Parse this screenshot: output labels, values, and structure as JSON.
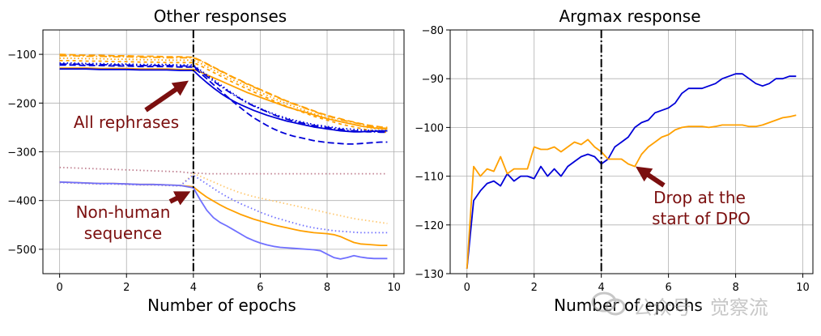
{
  "colors": {
    "orange": "#ffa000",
    "light_orange": "#ffc870",
    "blue": "#0000d8",
    "light_blue": "#7070ff",
    "mauve": "#c08090",
    "arrow": "#7b0f0f",
    "annotation_text": "#7b0f0f",
    "grid": "#b0b0b0",
    "vline": "#000000"
  },
  "watermark": {
    "text": "公众号 · 觉察流",
    "icon": "wechat-icon"
  },
  "chart_data": [
    {
      "type": "line",
      "title": "Other responses",
      "xlabel": "Number of epochs",
      "ylabel": "",
      "xlim": [
        -0.5,
        10.3
      ],
      "ylim": [
        -550,
        -50
      ],
      "xticks": [
        0,
        2,
        4,
        6,
        8,
        10
      ],
      "yticks": [
        -500,
        -400,
        -300,
        -200,
        -100
      ],
      "ytick_labels": [
        "−500",
        "−400",
        "−300",
        "−200",
        "−100"
      ],
      "grid": true,
      "legend": "none",
      "vline": {
        "x": 4,
        "style": "dashdot"
      },
      "annotations": [
        {
          "text": "All rephrases",
          "arrow_to": [
            4,
            -133
          ]
        },
        {
          "text": "Non-human sequence",
          "lines": [
            "Non-human",
            "sequence"
          ],
          "arrow_to": [
            4,
            -374
          ]
        }
      ],
      "x": [
        0,
        0.4,
        0.8,
        1.2,
        1.6,
        2.0,
        2.4,
        2.8,
        3.2,
        3.6,
        4.0,
        4.2,
        4.4,
        4.6,
        4.8,
        5.0,
        5.2,
        5.4,
        5.6,
        5.8,
        6.0,
        6.2,
        6.4,
        6.6,
        6.8,
        7.0,
        7.2,
        7.4,
        7.6,
        7.8,
        8.0,
        8.2,
        8.4,
        8.6,
        8.8,
        9.0,
        9.2,
        9.4,
        9.6,
        9.8
      ],
      "series": [
        {
          "color_key": "orange",
          "style": "dashed",
          "values": [
            -100,
            -101,
            -102,
            -102,
            -103,
            -103,
            -104,
            -104,
            -105,
            -105,
            -106,
            -112,
            -119,
            -126,
            -133,
            -140,
            -147,
            -153,
            -160,
            -166,
            -172,
            -178,
            -184,
            -190,
            -196,
            -201,
            -206,
            -211,
            -216,
            -221,
            -225,
            -229,
            -232,
            -236,
            -239,
            -242,
            -245,
            -247,
            -249,
            -250
          ]
        },
        {
          "color_key": "orange",
          "style": "dashdot",
          "values": [
            -103,
            -103,
            -104,
            -104,
            -105,
            -105,
            -106,
            -106,
            -107,
            -107,
            -107,
            -113,
            -120,
            -127,
            -134,
            -141,
            -148,
            -154,
            -161,
            -167,
            -173,
            -179,
            -185,
            -191,
            -197,
            -202,
            -207,
            -212,
            -217,
            -222,
            -226,
            -230,
            -234,
            -237,
            -240,
            -243,
            -246,
            -249,
            -251,
            -252
          ]
        },
        {
          "color_key": "orange",
          "style": "dotted",
          "values": [
            -108,
            -108,
            -109,
            -109,
            -110,
            -110,
            -111,
            -111,
            -112,
            -112,
            -112,
            -118,
            -125,
            -132,
            -139,
            -146,
            -153,
            -159,
            -166,
            -172,
            -178,
            -184,
            -190,
            -196,
            -202,
            -207,
            -212,
            -217,
            -222,
            -226,
            -230,
            -234,
            -238,
            -241,
            -244,
            -247,
            -250,
            -252,
            -254,
            -255
          ]
        },
        {
          "color_key": "orange",
          "style": "loosedash",
          "values": [
            -113,
            -113,
            -114,
            -114,
            -115,
            -115,
            -116,
            -116,
            -117,
            -117,
            -117,
            -123,
            -130,
            -137,
            -144,
            -151,
            -158,
            -164,
            -171,
            -177,
            -183,
            -189,
            -195,
            -201,
            -207,
            -212,
            -217,
            -222,
            -227,
            -231,
            -235,
            -239,
            -243,
            -246,
            -249,
            -252,
            -255,
            -257,
            -259,
            -260
          ]
        },
        {
          "color_key": "orange",
          "style": "solid",
          "values": [
            -128,
            -128,
            -128,
            -129,
            -129,
            -129,
            -130,
            -130,
            -130,
            -131,
            -131,
            -136,
            -142,
            -148,
            -154,
            -160,
            -166,
            -172,
            -178,
            -183,
            -188,
            -193,
            -198,
            -203,
            -208,
            -212,
            -216,
            -220,
            -224,
            -228,
            -232,
            -235,
            -238,
            -241,
            -244,
            -247,
            -249,
            -251,
            -252,
            -253
          ]
        },
        {
          "color_key": "blue",
          "style": "dashed",
          "values": [
            -122,
            -122,
            -123,
            -123,
            -124,
            -124,
            -125,
            -125,
            -125,
            -126,
            -126,
            -138,
            -150,
            -162,
            -174,
            -186,
            -198,
            -209,
            -220,
            -230,
            -238,
            -246,
            -253,
            -259,
            -264,
            -268,
            -271,
            -274,
            -277,
            -279,
            -281,
            -282,
            -283,
            -284,
            -284,
            -283,
            -282,
            -281,
            -280,
            -280
          ]
        },
        {
          "color_key": "blue",
          "style": "dotted",
          "values": [
            -118,
            -118,
            -119,
            -119,
            -120,
            -120,
            -121,
            -121,
            -121,
            -122,
            -122,
            -132,
            -142,
            -152,
            -162,
            -172,
            -181,
            -190,
            -198,
            -205,
            -211,
            -217,
            -222,
            -227,
            -231,
            -235,
            -238,
            -241,
            -244,
            -246,
            -248,
            -250,
            -252,
            -253,
            -254,
            -255,
            -256,
            -256,
            -257,
            -257
          ]
        },
        {
          "color_key": "blue",
          "style": "dashdot",
          "values": [
            -120,
            -120,
            -121,
            -121,
            -122,
            -122,
            -123,
            -123,
            -123,
            -124,
            -124,
            -134,
            -145,
            -155,
            -165,
            -174,
            -183,
            -191,
            -199,
            -206,
            -212,
            -218,
            -224,
            -229,
            -233,
            -237,
            -240,
            -243,
            -246,
            -248,
            -250,
            -252,
            -254,
            -256,
            -257,
            -258,
            -259,
            -259,
            -260,
            -260
          ]
        },
        {
          "color_key": "blue",
          "style": "solid",
          "values": [
            -130,
            -130,
            -130,
            -131,
            -131,
            -131,
            -132,
            -132,
            -132,
            -133,
            -133,
            -146,
            -158,
            -169,
            -179,
            -188,
            -196,
            -203,
            -209,
            -215,
            -220,
            -225,
            -229,
            -233,
            -237,
            -240,
            -243,
            -246,
            -249,
            -251,
            -253,
            -255,
            -257,
            -258,
            -259,
            -259,
            -258,
            -258,
            -257,
            -257
          ]
        },
        {
          "color_key": "mauve",
          "style": "dotted",
          "values": [
            -332,
            -333,
            -334,
            -335,
            -336,
            -337,
            -338,
            -339,
            -340,
            -341,
            -344,
            -344,
            -345,
            -345,
            -345,
            -345,
            -345,
            -345,
            -345,
            -345,
            -345,
            -345,
            -345,
            -345,
            -345,
            -345,
            -345,
            -345,
            -345,
            -345,
            -345,
            -345,
            -345,
            -345,
            -345,
            -345,
            -345,
            -345,
            -345,
            -345
          ]
        },
        {
          "color_key": "light_orange",
          "style": "dotted",
          "values": [
            -363,
            -364,
            -365,
            -366,
            -366,
            -367,
            -368,
            -368,
            -369,
            -370,
            -345,
            -350,
            -356,
            -362,
            -368,
            -374,
            -379,
            -384,
            -388,
            -392,
            -395,
            -398,
            -401,
            -404,
            -407,
            -410,
            -413,
            -416,
            -419,
            -422,
            -425,
            -428,
            -431,
            -434,
            -437,
            -439,
            -441,
            -443,
            -445,
            -447
          ]
        },
        {
          "color_key": "light_blue",
          "style": "dotted",
          "values": [
            -363,
            -364,
            -365,
            -366,
            -366,
            -367,
            -368,
            -368,
            -369,
            -370,
            -348,
            -357,
            -366,
            -375,
            -384,
            -392,
            -399,
            -406,
            -412,
            -418,
            -424,
            -429,
            -434,
            -438,
            -442,
            -446,
            -450,
            -453,
            -456,
            -458,
            -460,
            -462,
            -463,
            -464,
            -465,
            -466,
            -466,
            -466,
            -466,
            -466
          ]
        },
        {
          "color_key": "orange",
          "style": "solid",
          "values": [
            -362,
            -363,
            -364,
            -365,
            -365,
            -366,
            -367,
            -367,
            -368,
            -369,
            -372,
            -383,
            -393,
            -401,
            -409,
            -416,
            -422,
            -428,
            -433,
            -438,
            -442,
            -446,
            -450,
            -453,
            -456,
            -459,
            -462,
            -464,
            -466,
            -467,
            -468,
            -470,
            -474,
            -480,
            -486,
            -489,
            -490,
            -491,
            -492,
            -492
          ]
        },
        {
          "color_key": "light_blue",
          "style": "solid",
          "values": [
            -362,
            -363,
            -364,
            -365,
            -365,
            -366,
            -367,
            -367,
            -368,
            -369,
            -374,
            -398,
            -420,
            -435,
            -445,
            -452,
            -460,
            -468,
            -476,
            -482,
            -487,
            -491,
            -494,
            -496,
            -497,
            -498,
            -499,
            -500,
            -501,
            -503,
            -510,
            -517,
            -520,
            -517,
            -513,
            -516,
            -518,
            -519,
            -519,
            -519
          ]
        }
      ]
    },
    {
      "type": "line",
      "title": "Argmax response",
      "xlabel": "Number of epochs",
      "ylabel": "",
      "xlim": [
        -0.5,
        10.3
      ],
      "ylim": [
        -130,
        -80
      ],
      "xticks": [
        0,
        2,
        4,
        6,
        8,
        10
      ],
      "yticks": [
        -130,
        -120,
        -110,
        -100,
        -90,
        -80
      ],
      "ytick_labels": [
        "−130",
        "−120",
        "−110",
        "−100",
        "−90",
        "−80"
      ],
      "grid": true,
      "legend": "none",
      "vline": {
        "x": 4,
        "style": "dashdot"
      },
      "annotations": [
        {
          "text": "Drop at the start of DPO",
          "lines": [
            "Drop at the",
            "start of DPO"
          ],
          "arrow_to": [
            5.05,
            -108
          ]
        }
      ],
      "series": [
        {
          "color_key": "blue",
          "style": "solid",
          "x": [
            0,
            0.2,
            0.4,
            0.6,
            0.8,
            1.0,
            1.2,
            1.4,
            1.6,
            1.8,
            2.0,
            2.2,
            2.4,
            2.6,
            2.8,
            3.0,
            3.2,
            3.4,
            3.6,
            3.8,
            4.0,
            4.2,
            4.4,
            4.6,
            4.8,
            5.0,
            5.2,
            5.4,
            5.6,
            5.8,
            6.0,
            6.2,
            6.4,
            6.6,
            6.8,
            7.0,
            7.2,
            7.4,
            7.6,
            7.8,
            8.0,
            8.2,
            8.4,
            8.6,
            8.8,
            9.0,
            9.2,
            9.4,
            9.6,
            9.8
          ],
          "values": [
            -129,
            -115,
            -113,
            -111.5,
            -111,
            -112,
            -109.5,
            -111,
            -110,
            -110,
            -110.5,
            -108,
            -110,
            -108.5,
            -110,
            -108,
            -107,
            -106,
            -105.5,
            -106,
            -107.5,
            -106.5,
            -104,
            -103,
            -102,
            -100,
            -99,
            -98.5,
            -97,
            -96.5,
            -96,
            -95,
            -93,
            -92,
            -92,
            -92,
            -91.5,
            -91,
            -90,
            -89.5,
            -89,
            -89,
            -90,
            -91,
            -91.5,
            -91,
            -90,
            -90,
            -89.5,
            -89.5
          ]
        },
        {
          "color_key": "orange",
          "style": "solid",
          "x": [
            0,
            0.2,
            0.4,
            0.6,
            0.8,
            1.0,
            1.2,
            1.4,
            1.6,
            1.8,
            2.0,
            2.2,
            2.4,
            2.6,
            2.8,
            3.0,
            3.2,
            3.4,
            3.6,
            3.8,
            4.0,
            4.2,
            4.4,
            4.6,
            4.8,
            5.0,
            5.2,
            5.4,
            5.6,
            5.8,
            6.0,
            6.2,
            6.4,
            6.6,
            6.8,
            7.0,
            7.2,
            7.4,
            7.6,
            7.8,
            8.0,
            8.2,
            8.4,
            8.6,
            8.8,
            9.0,
            9.2,
            9.4,
            9.6,
            9.8
          ],
          "values": [
            -129,
            -108,
            -110,
            -108.5,
            -109,
            -106,
            -109.5,
            -108.5,
            -108.5,
            -108.5,
            -104,
            -104.5,
            -104.5,
            -104,
            -105,
            -104,
            -103,
            -103.5,
            -102.5,
            -104,
            -105,
            -106.5,
            -106.5,
            -106.5,
            -107.5,
            -108,
            -105.5,
            -104,
            -103,
            -102,
            -101.5,
            -100.5,
            -100,
            -99.8,
            -99.8,
            -99.8,
            -100,
            -99.8,
            -99.5,
            -99.5,
            -99.5,
            -99.5,
            -99.8,
            -99.8,
            -99.5,
            -99,
            -98.5,
            -98,
            -97.8,
            -97.5
          ]
        }
      ]
    }
  ]
}
